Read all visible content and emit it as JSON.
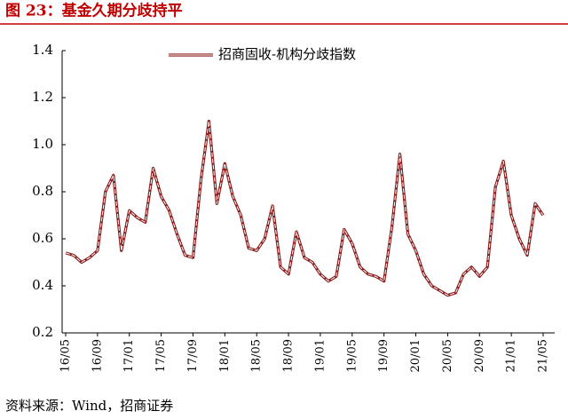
{
  "chart_data": {
    "type": "line",
    "title": "图 23：基金久期分歧持平",
    "source": "资料来源：Wind，招商证券",
    "categories": [
      "16/05",
      null,
      null,
      null,
      "16/09",
      null,
      null,
      null,
      "17/01",
      null,
      null,
      null,
      "17/05",
      null,
      null,
      null,
      "17/09",
      null,
      null,
      null,
      "18/01",
      null,
      null,
      null,
      "18/05",
      null,
      null,
      null,
      "18/09",
      null,
      null,
      null,
      "19/01",
      null,
      null,
      null,
      "19/05",
      null,
      null,
      null,
      "19/09",
      null,
      null,
      null,
      "20/01",
      null,
      null,
      null,
      "20/05",
      null,
      null,
      null,
      "20/09",
      null,
      null,
      null,
      "21/01",
      null,
      null,
      null,
      "21/05"
    ],
    "series": [
      {
        "name": "招商固收-机构分歧指数",
        "color": "#8b1a1a",
        "values": [
          0.54,
          0.53,
          0.5,
          0.52,
          0.55,
          0.8,
          0.87,
          0.55,
          0.72,
          0.69,
          0.67,
          0.9,
          0.78,
          0.72,
          0.62,
          0.53,
          0.52,
          0.85,
          1.1,
          0.75,
          0.92,
          0.78,
          0.7,
          0.56,
          0.55,
          0.6,
          0.74,
          0.48,
          0.45,
          0.63,
          0.52,
          0.5,
          0.45,
          0.42,
          0.44,
          0.64,
          0.58,
          0.48,
          0.45,
          0.44,
          0.42,
          0.65,
          0.96,
          0.62,
          0.55,
          0.45,
          0.4,
          0.38,
          0.36,
          0.37,
          0.45,
          0.48,
          0.44,
          0.48,
          0.82,
          0.93,
          0.7,
          0.6,
          0.53,
          0.75,
          0.7
        ]
      }
    ],
    "ylim": [
      0.2,
      1.4
    ],
    "yticks": [
      0.2,
      0.4,
      0.6,
      0.8,
      {
        "value": 1.0,
        "label": "1.0"
      },
      1.2,
      1.4
    ],
    "legend": "top"
  }
}
